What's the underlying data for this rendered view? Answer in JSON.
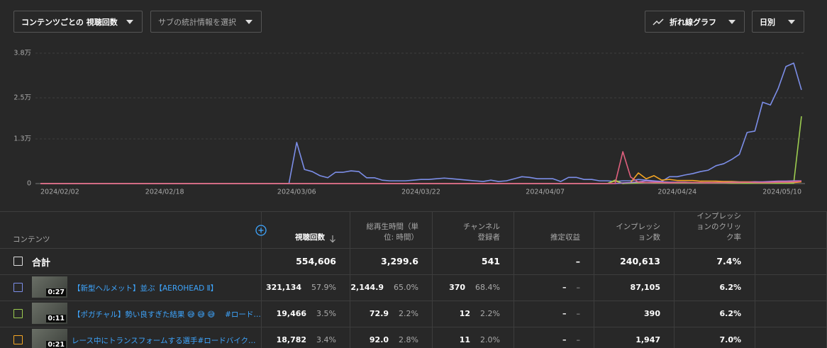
{
  "controls": {
    "metric": "コンテンツごとの 視聴回数",
    "sub_metric": "サブの統計情報を選択",
    "chart_type": "折れ線グラフ",
    "period": "日別"
  },
  "chart_data": {
    "type": "line",
    "categories": [
      "2024/02/02",
      null,
      null,
      null,
      null,
      null,
      null,
      null,
      null,
      null,
      null,
      null,
      null,
      null,
      null,
      null,
      "2024/02/18",
      null,
      null,
      null,
      null,
      null,
      null,
      null,
      null,
      null,
      null,
      null,
      null,
      null,
      null,
      null,
      null,
      "2024/03/06",
      null,
      null,
      null,
      null,
      null,
      null,
      null,
      null,
      null,
      null,
      null,
      null,
      null,
      null,
      null,
      "2024/03/22",
      null,
      null,
      null,
      null,
      null,
      null,
      null,
      null,
      null,
      null,
      null,
      null,
      null,
      null,
      null,
      "2024/04/07",
      null,
      null,
      null,
      null,
      null,
      null,
      null,
      null,
      null,
      null,
      null,
      null,
      null,
      null,
      null,
      null,
      "2024/04/24",
      null,
      null,
      null,
      null,
      null,
      null,
      null,
      null,
      null,
      null,
      null,
      null,
      null,
      null,
      null,
      "2024/05/10"
    ],
    "ylim": [
      0,
      38000
    ],
    "yticks": [
      0,
      {
        "value": 13000,
        "label": "1.3万"
      },
      {
        "value": 25000,
        "label": "2.5万"
      },
      {
        "value": 38000,
        "label": "3.8万"
      }
    ],
    "grid": true,
    "series": [
      {
        "color": "#7c8ee8",
        "values": [
          0,
          0,
          0,
          0,
          0,
          0,
          0,
          0,
          0,
          0,
          0,
          0,
          0,
          0,
          0,
          0,
          0,
          0,
          0,
          0,
          0,
          0,
          0,
          0,
          0,
          0,
          0,
          0,
          0,
          0,
          0,
          0,
          0,
          12000,
          4100,
          3500,
          2300,
          1700,
          3300,
          3300,
          3700,
          3500,
          1700,
          1700,
          1000,
          800,
          800,
          800,
          1000,
          1200,
          1200,
          1400,
          1600,
          1400,
          1200,
          1000,
          800,
          600,
          1000,
          600,
          800,
          1400,
          2000,
          1800,
          1400,
          1400,
          1400,
          600,
          1800,
          1800,
          1200,
          1200,
          800,
          800,
          600,
          800,
          800,
          1200,
          1000,
          800,
          600,
          2000,
          2000,
          2500,
          2900,
          3500,
          3900,
          5200,
          5800,
          7000,
          8500,
          14900,
          15300,
          23700,
          22900,
          27700,
          34100,
          35100,
          27300
        ]
      },
      {
        "color": "#f5a623",
        "values": [
          0,
          0,
          0,
          0,
          0,
          0,
          0,
          0,
          0,
          0,
          0,
          0,
          0,
          0,
          0,
          0,
          0,
          0,
          0,
          0,
          0,
          0,
          0,
          0,
          0,
          0,
          0,
          0,
          0,
          0,
          0,
          0,
          0,
          0,
          0,
          0,
          0,
          0,
          0,
          0,
          0,
          0,
          0,
          0,
          0,
          0,
          0,
          0,
          0,
          0,
          0,
          0,
          0,
          0,
          0,
          0,
          0,
          0,
          0,
          0,
          0,
          0,
          0,
          0,
          0,
          0,
          0,
          0,
          0,
          0,
          0,
          0,
          0,
          0,
          800,
          0,
          300,
          3100,
          1400,
          2300,
          1000,
          1200,
          900,
          900,
          900,
          700,
          700,
          700,
          600,
          600,
          500,
          500,
          500,
          400,
          400,
          400,
          400,
          300,
          500
        ]
      },
      {
        "color": "#9ccc50",
        "values": [
          0,
          0,
          0,
          0,
          0,
          0,
          0,
          0,
          0,
          0,
          0,
          0,
          0,
          0,
          0,
          0,
          0,
          0,
          0,
          0,
          0,
          0,
          0,
          0,
          0,
          0,
          0,
          0,
          0,
          0,
          0,
          0,
          0,
          0,
          0,
          0,
          0,
          0,
          0,
          0,
          0,
          0,
          0,
          0,
          0,
          0,
          0,
          0,
          0,
          0,
          0,
          0,
          0,
          0,
          0,
          0,
          0,
          0,
          0,
          0,
          0,
          0,
          0,
          0,
          0,
          0,
          0,
          0,
          0,
          0,
          0,
          0,
          0,
          0,
          1000,
          0,
          100,
          200,
          300,
          200,
          200,
          200,
          200,
          200,
          200,
          200,
          200,
          200,
          200,
          100,
          100,
          100,
          100,
          100,
          100,
          100,
          100,
          100,
          19600
        ]
      },
      {
        "color": "#b07cd8",
        "values": [
          0,
          0,
          0,
          0,
          0,
          0,
          0,
          0,
          0,
          0,
          0,
          0,
          0,
          0,
          0,
          0,
          0,
          0,
          0,
          0,
          0,
          0,
          0,
          0,
          0,
          0,
          0,
          0,
          0,
          0,
          0,
          0,
          0,
          0,
          0,
          0,
          0,
          0,
          0,
          0,
          0,
          0,
          0,
          0,
          0,
          0,
          0,
          0,
          0,
          0,
          0,
          0,
          0,
          0,
          0,
          0,
          0,
          0,
          0,
          0,
          0,
          0,
          0,
          0,
          0,
          0,
          0,
          0,
          0,
          0,
          0,
          0,
          0,
          0,
          0,
          200,
          300,
          500,
          800,
          600,
          500,
          400,
          400,
          400,
          300,
          300,
          300,
          300,
          300,
          400,
          400,
          400,
          500,
          500,
          600,
          700,
          700,
          800,
          800
        ]
      },
      {
        "color": "#e0607e",
        "values": [
          0,
          0,
          0,
          0,
          0,
          0,
          0,
          0,
          0,
          0,
          0,
          0,
          0,
          0,
          0,
          0,
          0,
          0,
          0,
          0,
          0,
          0,
          0,
          0,
          0,
          0,
          0,
          0,
          0,
          0,
          0,
          0,
          0,
          0,
          0,
          0,
          0,
          0,
          0,
          0,
          0,
          0,
          0,
          0,
          0,
          0,
          0,
          0,
          0,
          0,
          0,
          0,
          0,
          0,
          0,
          0,
          0,
          0,
          0,
          0,
          0,
          0,
          0,
          0,
          0,
          0,
          0,
          0,
          0,
          0,
          0,
          0,
          0,
          0,
          0,
          9300,
          1900,
          400,
          300,
          300,
          300,
          200,
          300,
          300,
          300,
          300,
          200,
          300,
          300,
          300,
          300,
          400,
          300,
          300,
          300,
          400,
          400,
          500,
          700
        ]
      }
    ]
  },
  "table": {
    "headers": [
      "コンテンツ",
      "視聴回数",
      "総再生時間（単位: 時間）",
      "チャンネル登録者",
      "推定収益",
      "インプレッション数",
      "インプレッションのクリック率"
    ],
    "total": {
      "label": "合計",
      "cells": [
        "554,606",
        "3,299.6",
        "541",
        "–",
        "240,613",
        "7.4%"
      ]
    },
    "rows": [
      {
        "duration": "0:27",
        "title": "【新型ヘルメット】並ぶ【AEROHEAD Ⅱ】",
        "cells": [
          [
            "321,134",
            "57.9%"
          ],
          [
            "2,144.9",
            "65.0%"
          ],
          [
            "370",
            "68.4%"
          ],
          [
            "–",
            "–"
          ],
          [
            "87,105"
          ],
          [
            "6.2%"
          ]
        ]
      },
      {
        "duration": "0:11",
        "title": "【ポガチャル】勢い良すぎた結果 😅 😅 😅 　#ロード…",
        "cells": [
          [
            "19,466",
            "3.5%"
          ],
          [
            "72.9",
            "2.2%"
          ],
          [
            "12",
            "2.2%"
          ],
          [
            "–",
            "–"
          ],
          [
            "390"
          ],
          [
            "6.2%"
          ]
        ]
      },
      {
        "duration": "0:21",
        "title": "レース中にトランスフォームする選手#ロードバイク…",
        "cells": [
          [
            "18,782",
            "3.4%"
          ],
          [
            "92.0",
            "2.8%"
          ],
          [
            "11",
            "2.0%"
          ],
          [
            "–",
            "–"
          ],
          [
            "1,947"
          ],
          [
            "7.0%"
          ]
        ]
      }
    ]
  }
}
